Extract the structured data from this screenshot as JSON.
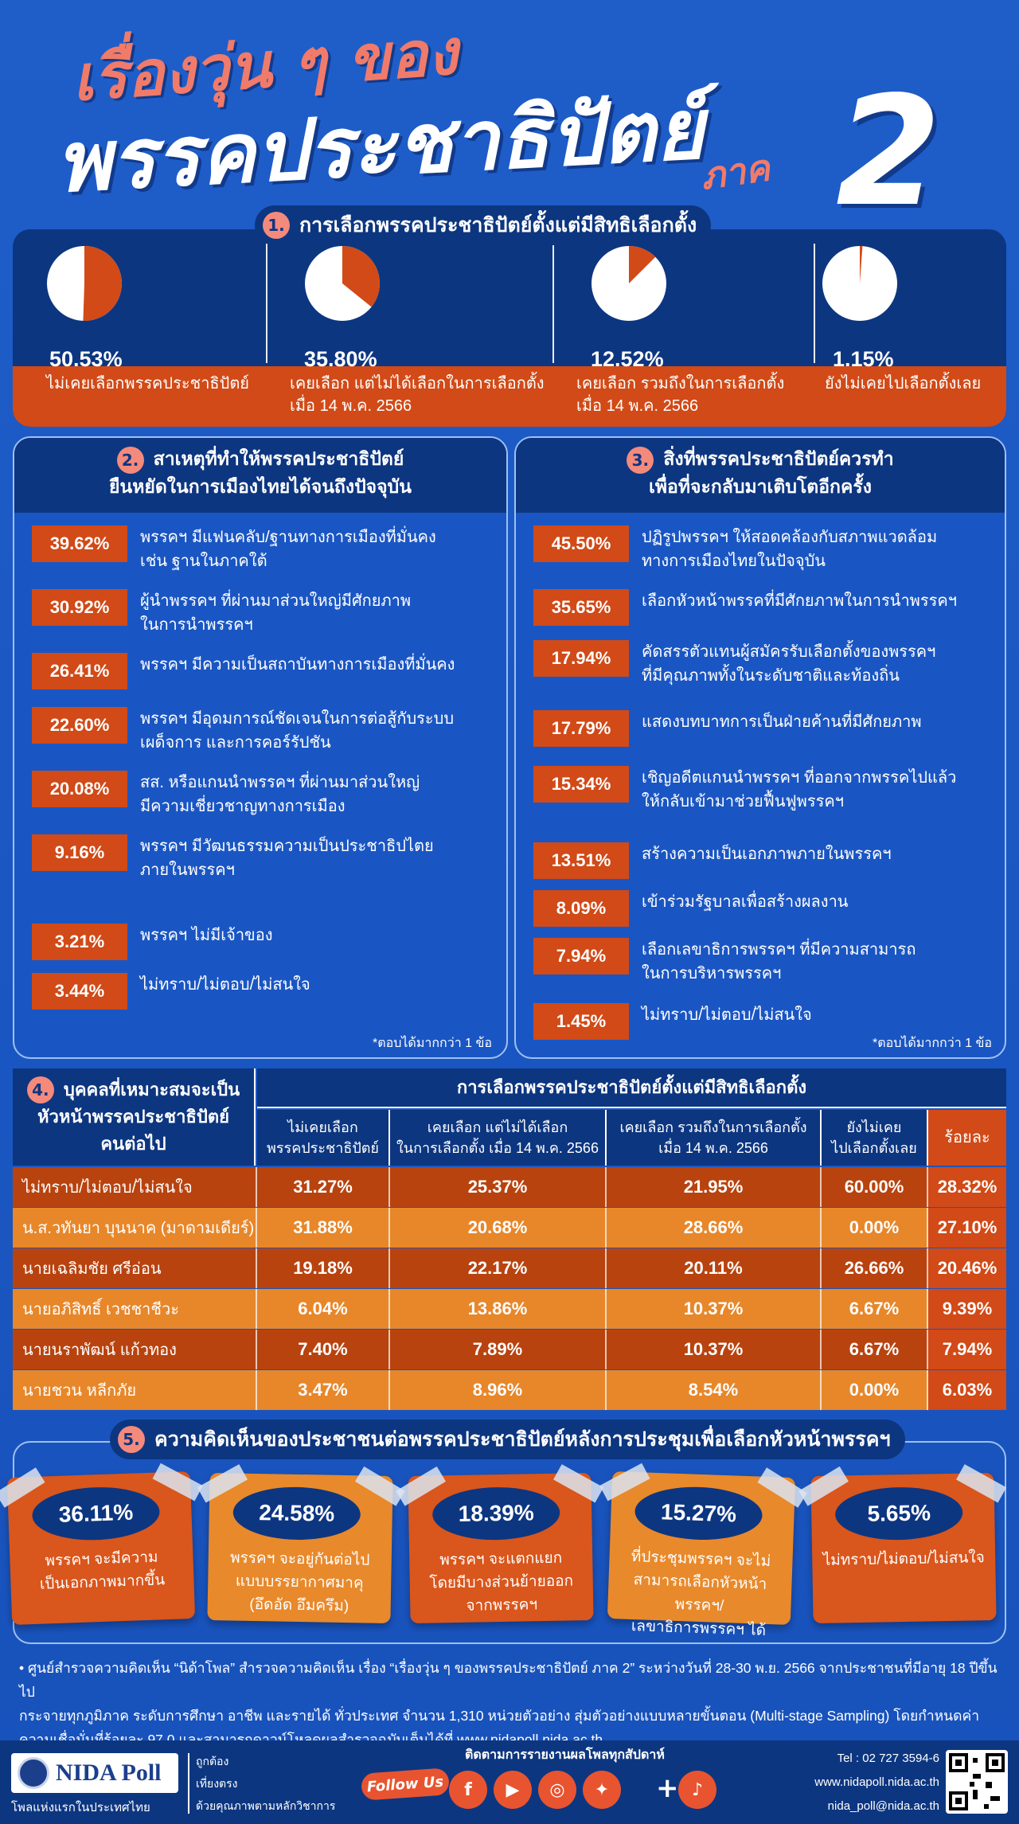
{
  "title": {
    "line1": "เรื่องวุ่น ๆ ของ",
    "line2": "พรรคประชาธิปัตย์",
    "part_label": "ภาค",
    "part_number": "2"
  },
  "section1": {
    "number": "1.",
    "title": "การเลือกพรรคประชาธิปัตย์ตั้งแต่มีสิทธิเลือกตั้ง",
    "items": [
      {
        "pct": "50.53%",
        "label_l1": "ไม่เคยเลือกพรรคประชาธิปัตย์",
        "label_l2": ""
      },
      {
        "pct": "35.80%",
        "label_l1": "เคยเลือก แต่ไม่ได้เลือกในการเลือกตั้ง",
        "label_l2": "เมื่อ 14 พ.ค. 2566"
      },
      {
        "pct": "12.52%",
        "label_l1": "เคยเลือก รวมถึงในการเลือกตั้ง",
        "label_l2": "เมื่อ 14 พ.ค. 2566"
      },
      {
        "pct": "1.15%",
        "label_l1": "ยังไม่เคยไปเลือกตั้งเลย",
        "label_l2": ""
      }
    ]
  },
  "section2": {
    "number": "2.",
    "title_l1": "สาเหตุที่ทำให้พรรคประชาธิปัตย์",
    "title_l2": "ยืนหยัดในการเมืองไทยได้จนถึงปัจจุบัน",
    "rows": [
      {
        "pct": "39.62%",
        "l1": "พรรคฯ มีแฟนคลับ/ฐานทางการเมืองที่มั่นคง",
        "l2": "เช่น ฐานในภาคใต้"
      },
      {
        "pct": "30.92%",
        "l1": "ผู้นำพรรคฯ ที่ผ่านมาส่วนใหญ่มีศักยภาพ",
        "l2": "ในการนำพรรคฯ"
      },
      {
        "pct": "26.41%",
        "l1": "พรรคฯ มีความเป็นสถาบันทางการเมืองที่มั่นคง",
        "l2": ""
      },
      {
        "pct": "22.60%",
        "l1": "พรรคฯ มีอุดมการณ์ชัดเจนในการต่อสู้กับระบบ",
        "l2": "เผด็จการ และการคอร์รัปชัน"
      },
      {
        "pct": "20.08%",
        "l1": "สส. หรือแกนนำพรรคฯ ที่ผ่านมาส่วนใหญ่",
        "l2": "มีความเชี่ยวชาญทางการเมือง"
      },
      {
        "pct": "9.16%",
        "l1": "พรรคฯ มีวัฒนธรรมความเป็นประชาธิปไตย",
        "l2": "ภายในพรรคฯ"
      },
      {
        "pct": "3.21%",
        "l1": "พรรคฯ ไม่มีเจ้าของ",
        "l2": ""
      },
      {
        "pct": "3.44%",
        "l1": "ไม่ทราบ/ไม่ตอบ/ไม่สนใจ",
        "l2": ""
      }
    ],
    "footnote": "*ตอบได้มากกว่า 1 ข้อ"
  },
  "section3": {
    "number": "3.",
    "title_l1": "สิ่งที่พรรคประชาธิปัตย์ควรทำ",
    "title_l2": "เพื่อที่จะกลับมาเติบโตอีกครั้ง",
    "rows": [
      {
        "pct": "45.50%",
        "l1": "ปฏิรูปพรรคฯ ให้สอดคล้องกับสภาพแวดล้อม",
        "l2": "ทางการเมืองไทยในปัจจุบัน"
      },
      {
        "pct": "35.65%",
        "l1": "เลือกหัวหน้าพรรคที่มีศักยภาพในการนำพรรคฯ",
        "l2": ""
      },
      {
        "pct": "17.94%",
        "l1": "คัดสรรตัวแทนผู้สมัครรับเลือกตั้งของพรรคฯ",
        "l2": "ที่มีคุณภาพทั้งในระดับชาติและท้องถิ่น"
      },
      {
        "pct": "17.79%",
        "l1": "แสดงบทบาทการเป็นฝ่ายค้านที่มีศักยภาพ",
        "l2": ""
      },
      {
        "pct": "15.34%",
        "l1": "เชิญอดีตแกนนำพรรคฯ ที่ออกจากพรรคไปแล้ว",
        "l2": "ให้กลับเข้ามาช่วยฟื้นฟูพรรคฯ"
      },
      {
        "pct": "13.51%",
        "l1": "สร้างความเป็นเอกภาพภายในพรรคฯ",
        "l2": ""
      },
      {
        "pct": "8.09%",
        "l1": "เข้าร่วมรัฐบาลเพื่อสร้างผลงาน",
        "l2": ""
      },
      {
        "pct": "7.94%",
        "l1": "เลือกเลขาธิการพรรคฯ ที่มีความสามารถ",
        "l2": "ในการบริหารพรรคฯ"
      },
      {
        "pct": "1.45%",
        "l1": "ไม่ทราบ/ไม่ตอบ/ไม่สนใจ",
        "l2": ""
      }
    ],
    "footnote": "*ตอบได้มากกว่า 1 ข้อ"
  },
  "section4": {
    "number": "4.",
    "title_l1": "บุคคลที่เหมาะสมจะเป็น",
    "title_l2": "หัวหน้าพรรคประชาธิปัตย์",
    "title_l3": "คนต่อไป",
    "group_header": "การเลือกพรรคประชาธิปัตย์ตั้งแต่มีสิทธิเลือกตั้ง",
    "col_headers": [
      {
        "l1": "ไม่เคยเลือก",
        "l2": "พรรคประชาธิปัตย์"
      },
      {
        "l1": "เคยเลือก แต่ไม่ได้เลือก",
        "l2": "ในการเลือกตั้ง เมื่อ 14 พ.ค. 2566"
      },
      {
        "l1": "เคยเลือก รวมถึงในการเลือกตั้ง",
        "l2": "เมื่อ 14 พ.ค. 2566"
      },
      {
        "l1": "ยังไม่เคย",
        "l2": "ไปเลือกตั้งเลย"
      }
    ],
    "pct_header": "ร้อยละ",
    "rows": [
      {
        "name": "ไม่ทราบ/ไม่ตอบ/ไม่สนใจ",
        "v": [
          "31.27%",
          "25.37%",
          "21.95%",
          "60.00%"
        ],
        "total": "28.32%"
      },
      {
        "name": "น.ส.วทันยา บุนนาค (มาดามเดียร์)",
        "v": [
          "31.88%",
          "20.68%",
          "28.66%",
          "0.00%"
        ],
        "total": "27.10%"
      },
      {
        "name": "นายเฉลิมชัย ศรีอ่อน",
        "v": [
          "19.18%",
          "22.17%",
          "20.11%",
          "26.66%"
        ],
        "total": "20.46%"
      },
      {
        "name": "นายอภิสิทธิ์ เวชชาชีวะ",
        "v": [
          "6.04%",
          "13.86%",
          "10.37%",
          "6.67%"
        ],
        "total": "9.39%"
      },
      {
        "name": "นายนราพัฒน์ แก้วทอง",
        "v": [
          "7.40%",
          "7.89%",
          "10.37%",
          "6.67%"
        ],
        "total": "7.94%"
      },
      {
        "name": "นายชวน หลีกภัย",
        "v": [
          "3.47%",
          "8.96%",
          "8.54%",
          "0.00%"
        ],
        "total": "6.03%"
      }
    ]
  },
  "section5": {
    "number": "5.",
    "title": "ความคิดเห็นของประชาชนต่อพรรคประชาธิปัตย์หลังการประชุมเพื่อเลือกหัวหน้าพรรคฯ",
    "notes": [
      {
        "pct": "36.11%",
        "l1": "พรรคฯ จะมีความ",
        "l2": "เป็นเอกภาพมากขึ้น",
        "l3": ""
      },
      {
        "pct": "24.58%",
        "l1": "พรรคฯ จะอยู่กันต่อไป",
        "l2": "แบบบรรยากาศมาคุ",
        "l3": "(อึดอัด อึมครึม)"
      },
      {
        "pct": "18.39%",
        "l1": "พรรคฯ จะแตกแยก",
        "l2": "โดยมีบางส่วนย้ายออก",
        "l3": "จากพรรคฯ"
      },
      {
        "pct": "15.27%",
        "l1": "ที่ประชุมพรรคฯ จะไม่",
        "l2": "สามารถเลือกหัวหน้าพรรคฯ/",
        "l3": "เลขาธิการพรรคฯ ได้"
      },
      {
        "pct": "5.65%",
        "l1": "ไม่ทราบ/ไม่ตอบ/ไม่สนใจ",
        "l2": "",
        "l3": ""
      }
    ]
  },
  "methodology": {
    "l1": "•  ศูนย์สำรวจความคิดเห็น “นิด้าโพล” สำรวจความคิดเห็น เรื่อง “เรื่องวุ่น ๆ ของพรรคประชาธิปัตย์ ภาค 2” ระหว่างวันที่ 28-30 พ.ย. 2566 จากประชาชนที่มีอายุ 18 ปีขึ้นไป",
    "l2": "กระจายทุกภูมิภาค ระดับการศึกษา อาชีพ และรายได้ ทั่วประเทศ จำนวน 1,310 หน่วยตัวอย่าง สุ่มตัวอย่างแบบหลายขั้นตอน (Multi-stage Sampling) โดยกำหนดค่า",
    "l3": "ความเชื่อมั่นที่ร้อยละ 97.0 และสามารถดาวน์โหลดผลสำรวจฉบับเต็มได้ที่ www.nidapoll.nida.ac.th"
  },
  "footer": {
    "logo": "NIDA Poll",
    "tagline": "โพลแห่งแรกในประเทศไทย",
    "values": [
      "ถูกต้อง",
      "เที่ยงตรง",
      "ด้วยคุณภาพตามหลักวิชาการ"
    ],
    "follow_label": "Follow Us",
    "follow_caption": "ติดตามการรายงานผลโพลทุกสัปดาห์",
    "tel": "Tel : 02 727 3594-6",
    "web": "www.nidapoll.nida.ac.th",
    "email": "nida_poll@nida.ac.th"
  },
  "chart_data": [
    {
      "type": "pie",
      "title": "การเลือกพรรคประชาธิปัตย์ตั้งแต่มีสิทธิเลือกตั้ง",
      "categories": [
        "ไม่เคยเลือกพรรคประชาธิปัตย์",
        "เคยเลือก แต่ไม่ได้เลือกในการเลือกตั้ง เมื่อ 14 พ.ค. 2566",
        "เคยเลือก รวมถึงในการเลือกตั้ง เมื่อ 14 พ.ค. 2566",
        "ยังไม่เคยไปเลือกตั้งเลย"
      ],
      "values": [
        50.53,
        35.8,
        12.52,
        1.15
      ],
      "colors": {
        "slice": "#d14a17",
        "remainder": "#ffffff"
      }
    },
    {
      "type": "table",
      "title": "สาเหตุที่ทำให้พรรคประชาธิปัตย์ยืนหยัดในการเมืองไทยได้จนถึงปัจจุบัน",
      "values": [
        39.62,
        30.92,
        26.41,
        22.6,
        20.08,
        9.16,
        3.21,
        3.44
      ]
    },
    {
      "type": "table",
      "title": "สิ่งที่พรรคประชาธิปัตย์ควรทำเพื่อที่จะกลับมาเติบโตอีกครั้ง",
      "values": [
        45.5,
        35.65,
        17.94,
        17.79,
        15.34,
        13.51,
        8.09,
        7.94,
        1.45
      ]
    },
    {
      "type": "table",
      "title": "บุคคลที่เหมาะสมจะเป็นหัวหน้าพรรคประชาธิปัตย์คนต่อไป",
      "values": [
        28.32,
        27.1,
        20.46,
        9.39,
        7.94,
        6.03
      ]
    },
    {
      "type": "table",
      "title": "ความคิดเห็นของประชาชนต่อพรรคประชาธิปัตย์หลังการประชุมเพื่อเลือกหัวหน้าพรรคฯ",
      "values": [
        36.11,
        24.58,
        18.39,
        15.27,
        5.65
      ]
    }
  ],
  "colors": {
    "bg": "#1b58c4",
    "navy": "#0d3680",
    "orange": "#d14a17",
    "row_dark": "#b8430f",
    "row_light": "#e7872a",
    "note_orange": "#d9561c",
    "note_amber": "#e8892b"
  }
}
